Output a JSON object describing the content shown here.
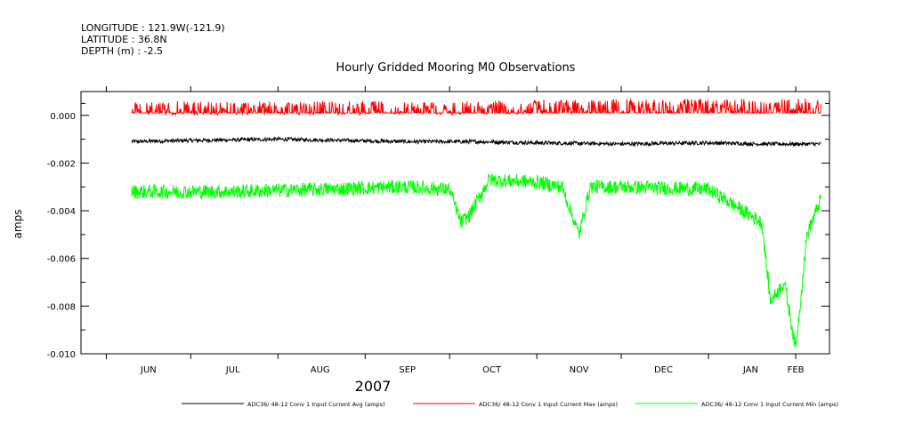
{
  "header": {
    "longitude": "LONGITUDE : 121.9W(-121.9)",
    "latitude": "LATITUDE : 36.8N",
    "depth": "DEPTH (m) : -2.5"
  },
  "chart_data": {
    "type": "line",
    "title": "Hourly Gridded Mooring M0 Observations",
    "ylabel": "amps",
    "xlabel": "2007",
    "ylim": [
      -0.01,
      0.001
    ],
    "yticks": [
      0.0,
      -0.002,
      -0.004,
      -0.006,
      -0.008,
      -0.01
    ],
    "ytick_labels": [
      "0.000",
      "-0.002",
      "-0.004",
      "-0.006",
      "-0.008",
      "-0.010"
    ],
    "x_tick_labels": [
      "JUN",
      "JUL",
      "AUG",
      "SEP",
      "OCT",
      "NOV",
      "DEC",
      "JAN",
      "FEB"
    ],
    "x_range": [
      "2007-05-23",
      "2008-02-13"
    ],
    "month_boundaries": [
      "2007-06-01",
      "2007-07-01",
      "2007-08-01",
      "2007-09-01",
      "2007-10-01",
      "2007-11-01",
      "2007-12-01",
      "2008-01-01",
      "2008-02-01"
    ],
    "label_dates": [
      "2007-06-16",
      "2007-07-16",
      "2007-08-16",
      "2007-09-16",
      "2007-10-16",
      "2007-11-16",
      "2007-12-16",
      "2008-01-16",
      "2008-02-01"
    ],
    "grid": false,
    "legend_position": "bottom",
    "series": [
      {
        "name": "ADC36/ 48-12 Conv 1 Input Current Avg (amps)",
        "color": "#000000",
        "x": [
          "2007-06-10",
          "2007-07-01",
          "2007-08-01",
          "2007-08-25",
          "2007-09-15",
          "2007-10-10",
          "2007-11-01",
          "2007-12-01",
          "2008-01-01",
          "2008-01-20",
          "2008-02-10"
        ],
        "y": [
          -0.0011,
          -0.00105,
          -0.001,
          -0.00105,
          -0.0011,
          -0.0011,
          -0.00115,
          -0.0012,
          -0.00115,
          -0.0012,
          -0.0012
        ]
      },
      {
        "name": "ADC36/ 48-12 Conv 1 Input Current Max (amps)",
        "color": "#ff0000",
        "x": [
          "2007-06-10",
          "2007-08-01",
          "2007-10-01",
          "2007-12-01",
          "2008-01-15",
          "2008-02-10"
        ],
        "y": [
          0.0003,
          0.0003,
          0.0003,
          0.0004,
          0.0004,
          0.0004
        ]
      },
      {
        "name": "ADC36/ 48-12 Conv 1 Input Current Min (amps)",
        "color": "#00ff00",
        "x": [
          "2007-06-10",
          "2007-07-15",
          "2007-08-15",
          "2007-09-15",
          "2007-10-01",
          "2007-10-05",
          "2007-10-08",
          "2007-10-15",
          "2007-11-01",
          "2007-11-10",
          "2007-11-16",
          "2007-11-20",
          "2007-12-01",
          "2008-01-01",
          "2008-01-20",
          "2008-01-23",
          "2008-01-28",
          "2008-02-01",
          "2008-02-05",
          "2008-02-10"
        ],
        "y": [
          -0.0032,
          -0.0032,
          -0.0031,
          -0.003,
          -0.0031,
          -0.0045,
          -0.0042,
          -0.0027,
          -0.0028,
          -0.003,
          -0.005,
          -0.003,
          -0.003,
          -0.0031,
          -0.0045,
          -0.0078,
          -0.007,
          -0.0098,
          -0.005,
          -0.0035
        ]
      }
    ]
  }
}
